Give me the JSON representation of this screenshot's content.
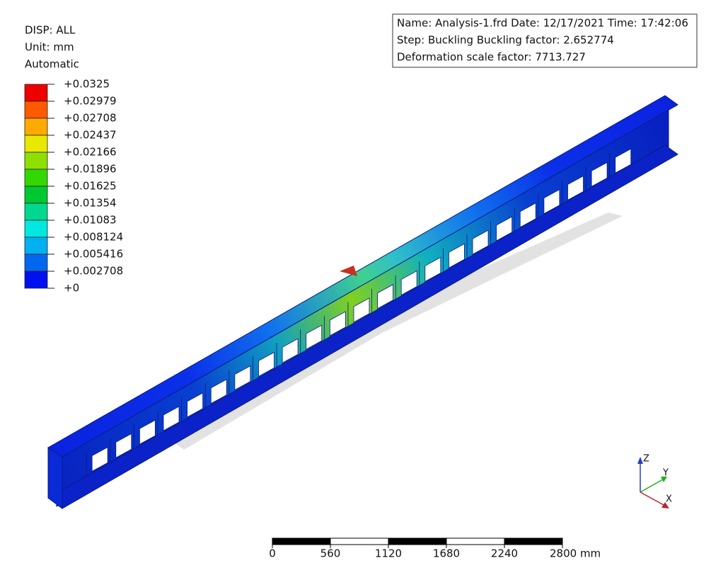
{
  "legend": {
    "header": [
      "DISP: ALL",
      "Unit: mm",
      "Automatic"
    ],
    "levels": [
      "+0.0325",
      "+0.02979",
      "+0.02708",
      "+0.02437",
      "+0.02166",
      "+0.01896",
      "+0.01625",
      "+0.01354",
      "+0.01083",
      "+0.008124",
      "+0.005416",
      "+0.002708",
      "+0"
    ],
    "colors": [
      "#ee0000",
      "#ff5a00",
      "#ffaa00",
      "#e8e800",
      "#8ee000",
      "#33d800",
      "#00c830",
      "#00d890",
      "#00e8e0",
      "#00b0f0",
      "#0068f0",
      "#0010f0"
    ]
  },
  "info": [
    "Name: Analysis-1.frd   Date: 12/17/2021   Time: 17:42:06",
    "Step: Buckling   Buckling factor: 2.652774",
    "Deformation scale factor: 7713.727"
  ],
  "scale_bar": [
    "0",
    "560",
    "1120",
    "1680",
    "2240",
    "2800 mm"
  ],
  "axes": [
    "Z",
    "Y",
    "X"
  ]
}
